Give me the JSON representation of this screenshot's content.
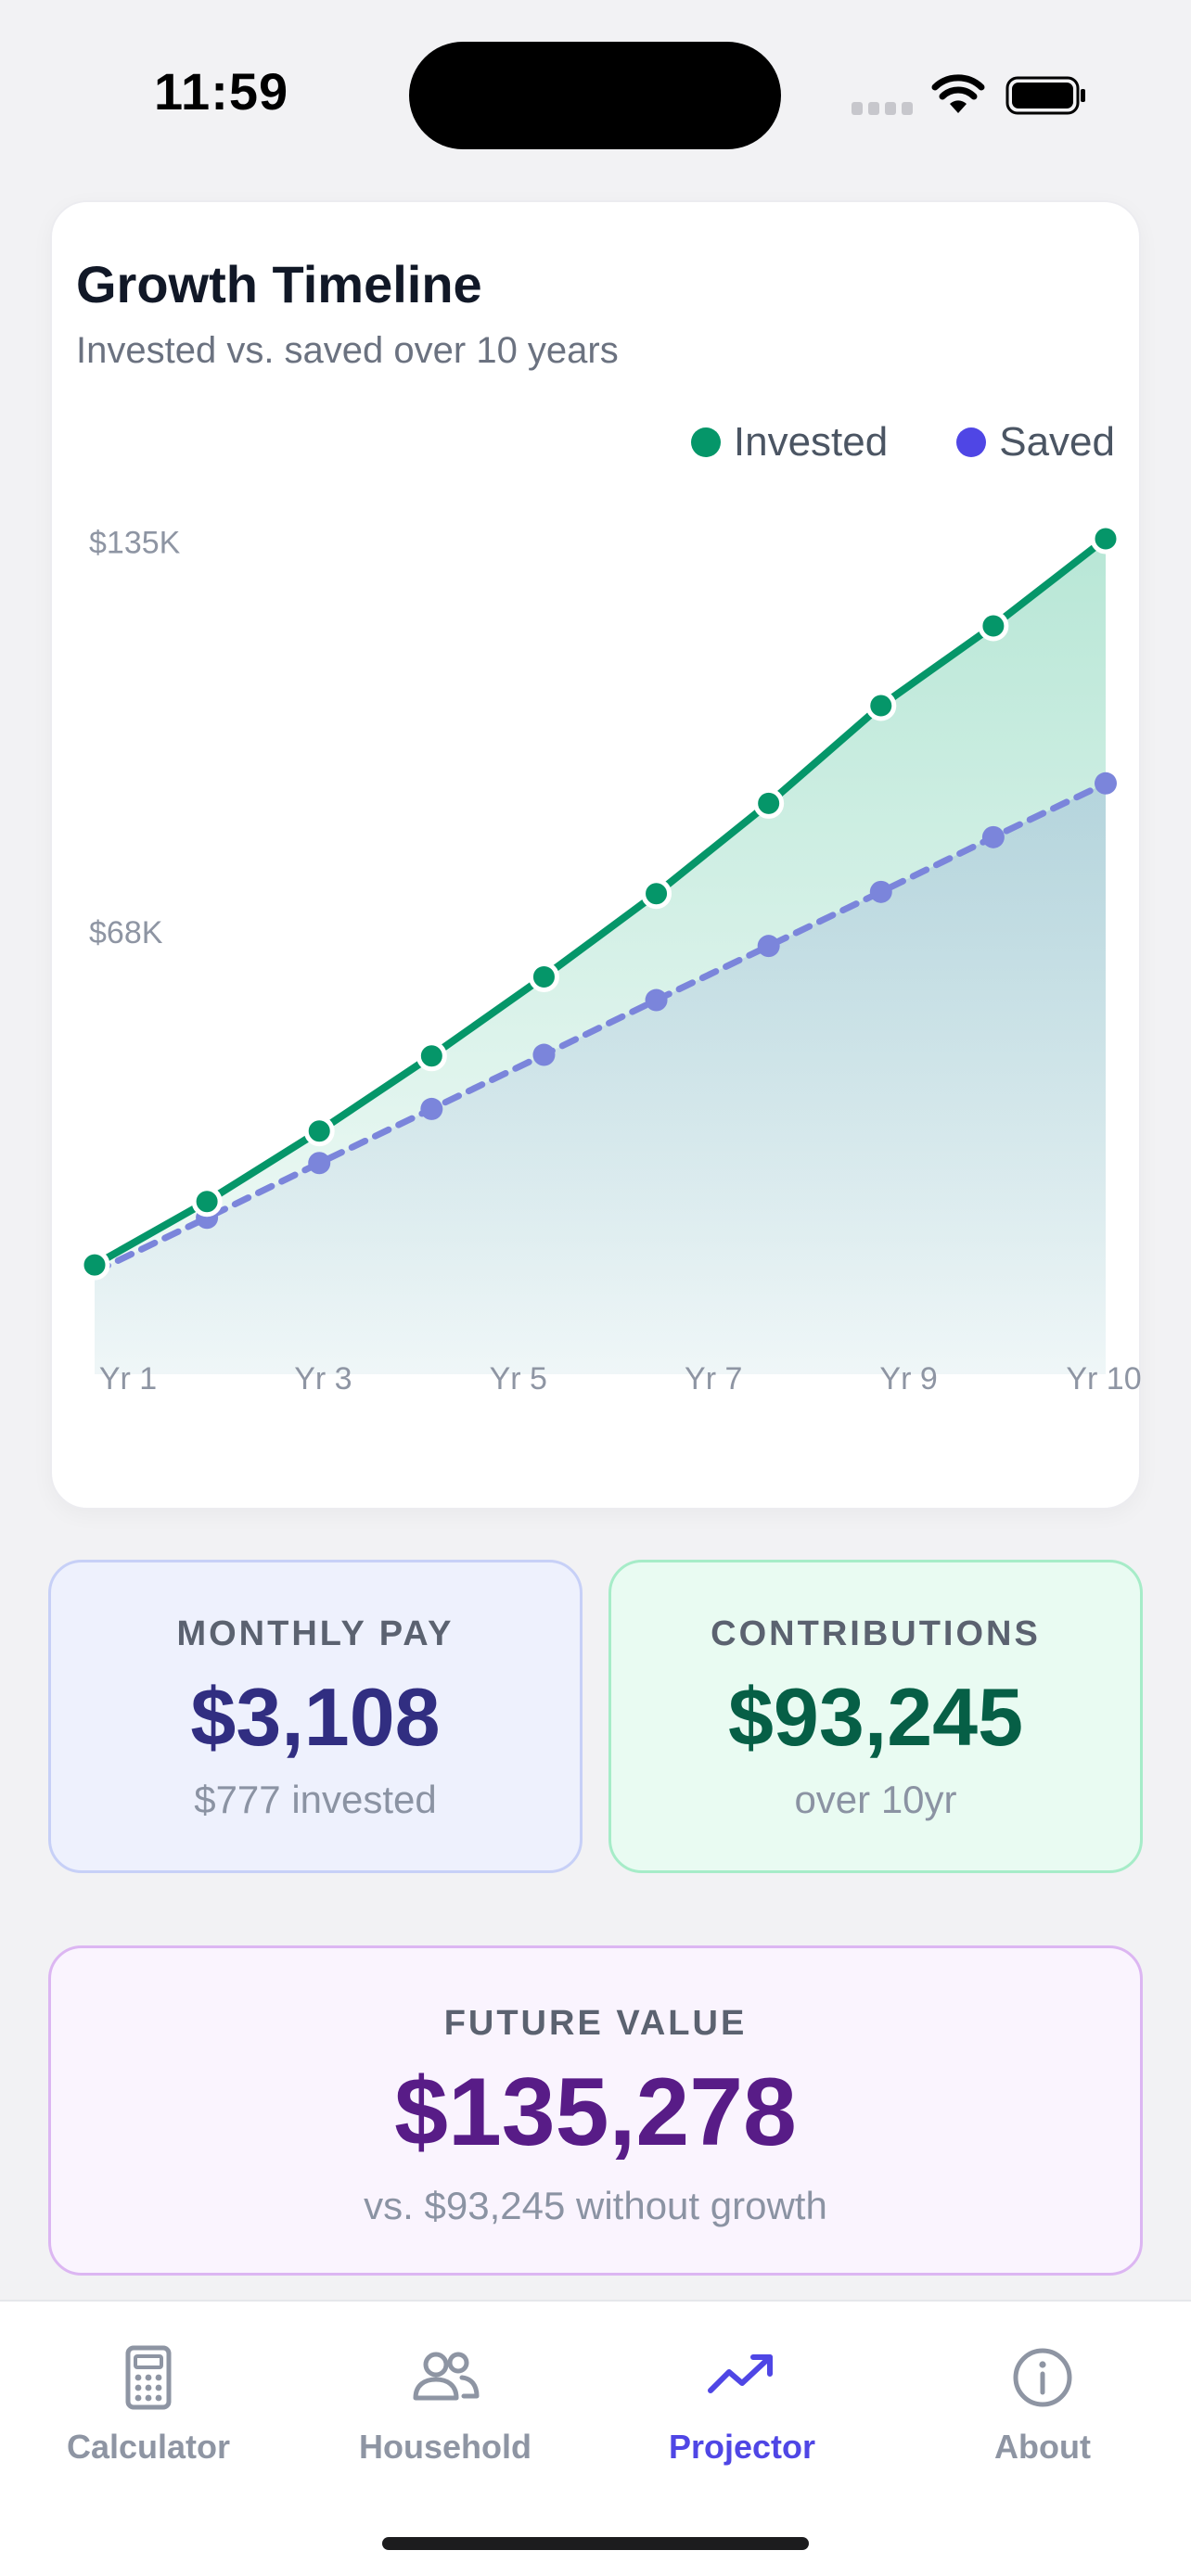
{
  "status_bar": {
    "time": "11:59"
  },
  "card": {
    "title": "Growth Timeline",
    "subtitle": "Invested vs. saved over 10 years"
  },
  "legend": {
    "invested": "Invested",
    "saved": "Saved"
  },
  "colors": {
    "invested": "#059669",
    "saved": "#4f46e5",
    "saved_line": "#7b85db",
    "active_tab": "#4f46e5"
  },
  "chart_data": {
    "type": "line",
    "x": [
      1,
      2,
      3,
      4,
      5,
      6,
      7,
      8,
      9,
      10
    ],
    "x_ticks": [
      {
        "x": 1,
        "label": "Yr 1"
      },
      {
        "x": 3,
        "label": "Yr 3"
      },
      {
        "x": 5,
        "label": "Yr 5"
      },
      {
        "x": 7,
        "label": "Yr 7"
      },
      {
        "x": 9,
        "label": "Yr 9"
      },
      {
        "x": 10,
        "label": "Yr 10"
      }
    ],
    "y_ticks": [
      {
        "value": 68000,
        "label": "$68K"
      },
      {
        "value": 135000,
        "label": "$135K"
      }
    ],
    "ylim": [
      0,
      135278
    ],
    "series": [
      {
        "name": "Invested",
        "style": "solid",
        "values": [
          10500,
          21400,
          33500,
          46400,
          60000,
          74300,
          89800,
          106600,
          120300,
          135278
        ]
      },
      {
        "name": "Saved",
        "style": "dashed",
        "values": [
          9300,
          18600,
          28000,
          37300,
          46600,
          56000,
          65300,
          74600,
          84000,
          93245
        ]
      }
    ],
    "grid": false,
    "legend_position": "top-right"
  },
  "stats": {
    "monthly": {
      "label": "MONTHLY PAY",
      "value": "$3,108",
      "sub": "$777 invested"
    },
    "contributions": {
      "label": "CONTRIBUTIONS",
      "value": "$93,245",
      "sub": "over 10yr"
    },
    "future": {
      "label": "FUTURE VALUE",
      "value": "$135,278",
      "sub": "vs. $93,245 without growth"
    }
  },
  "tabs": [
    {
      "label": "Calculator",
      "icon": "calculator-icon",
      "active": false
    },
    {
      "label": "Household",
      "icon": "users-icon",
      "active": false
    },
    {
      "label": "Projector",
      "icon": "trending-up-icon",
      "active": true
    },
    {
      "label": "About",
      "icon": "info-icon",
      "active": false
    }
  ]
}
